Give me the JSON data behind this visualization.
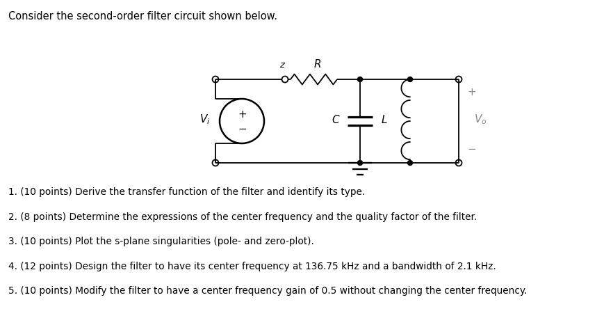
{
  "title_text": "Consider the second-order filter circuit shown below.",
  "questions": [
    "1. (10 points) Derive the transfer function of the filter and identify its type.",
    "2. (8 points) Determine the expressions of the center frequency and the quality factor of the filter.",
    "3. (10 points) Plot the s-plane singularities (pole- and zero-plot).",
    "4. (12 points) Design the filter to have its center frequency at 136.75 kHz and a bandwidth of 2.1 kHz.",
    "5. (10 points) Modify the filter to have a center frequency gain of 0.5 without changing the center frequency."
  ],
  "bg_color": "#ffffff",
  "text_color": "#000000"
}
